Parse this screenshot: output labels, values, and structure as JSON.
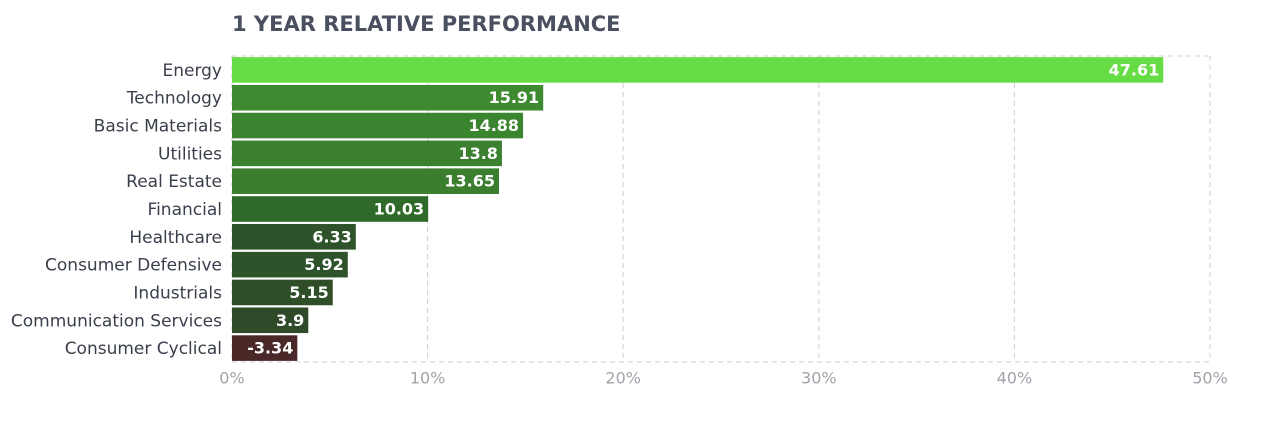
{
  "chart_data": {
    "type": "barh",
    "title": "1 YEAR RELATIVE PERFORMANCE",
    "categories": [
      "Energy",
      "Technology",
      "Basic Materials",
      "Utilities",
      "Real Estate",
      "Financial",
      "Healthcare",
      "Consumer Defensive",
      "Industrials",
      "Communication Services",
      "Consumer Cyclical"
    ],
    "values": [
      47.61,
      15.91,
      14.88,
      13.8,
      13.65,
      10.03,
      6.33,
      5.92,
      5.15,
      3.9,
      -3.34
    ],
    "colors": [
      "#66dd44",
      "#3d8a30",
      "#3c8530",
      "#3a802f",
      "#3a7e2e",
      "#2f6a29",
      "#2e5229",
      "#2e5229",
      "#2e4e28",
      "#2e4a28",
      "#4a2828"
    ],
    "xlim": [
      0,
      50
    ],
    "xticks": [
      {
        "value": 0,
        "label": "0%"
      },
      {
        "value": 10,
        "label": "10%"
      },
      {
        "value": 20,
        "label": "20%"
      },
      {
        "value": 30,
        "label": "30%"
      },
      {
        "value": 40,
        "label": "40%"
      },
      {
        "value": 50,
        "label": "50%"
      }
    ],
    "grid": true
  }
}
